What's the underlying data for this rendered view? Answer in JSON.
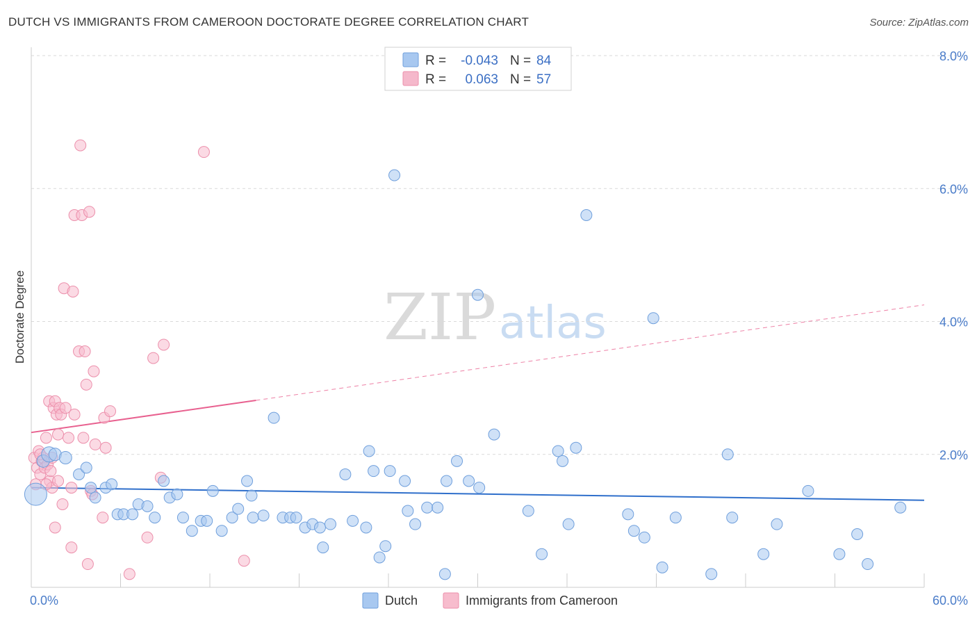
{
  "header": {
    "title": "DUTCH VS IMMIGRANTS FROM CAMEROON DOCTORATE DEGREE CORRELATION CHART",
    "source": "Source: ZipAtlas.com"
  },
  "watermark": {
    "zip": "ZIP",
    "atlas": "atlas"
  },
  "legend": {
    "rows": [
      {
        "r_label": "R =",
        "r_value": "-0.043",
        "n_label": "N =",
        "n_value": "84",
        "color": "#a8c8f0"
      },
      {
        "r_label": "R =",
        "r_value": "0.063",
        "n_label": "N =",
        "n_value": "57",
        "color": "#f5b8cb"
      }
    ]
  },
  "bottom_legend": {
    "dutch": "Dutch",
    "cameroon": "Immigrants from Cameroon"
  },
  "colors": {
    "dutch_fill": "#a8c8f0",
    "dutch_stroke": "#6f9fdc",
    "dutch_line": "#2f6fcb",
    "cam_fill": "#f7bccd",
    "cam_stroke": "#ec8fab",
    "cam_line": "#e8608f",
    "grid": "#d9d9d9"
  },
  "chart_data": {
    "type": "scatter",
    "title": "DUTCH VS IMMIGRANTS FROM CAMEROON DOCTORATE DEGREE CORRELATION CHART",
    "xlabel": "",
    "ylabel": "Doctorate Degree",
    "xlim": [
      0,
      60
    ],
    "ylim": [
      0,
      8
    ],
    "x_tick_labels": [
      "0.0%",
      "60.0%"
    ],
    "y_ticks": [
      2,
      4,
      6,
      8
    ],
    "y_tick_labels": [
      "2.0%",
      "4.0%",
      "6.0%",
      "8.0%"
    ],
    "series": [
      {
        "name": "Dutch",
        "r": -0.043,
        "n": 84,
        "trend": {
          "x0": 0,
          "y0": 1.5,
          "x1": 60,
          "y1": 1.31,
          "dashed_from": null
        },
        "points": [
          [
            0.3,
            1.4,
            16
          ],
          [
            0.8,
            1.9,
            9
          ],
          [
            1.2,
            2.0,
            11
          ],
          [
            1.6,
            2.0,
            9
          ],
          [
            2.3,
            1.95,
            9
          ],
          [
            3.2,
            1.7,
            8
          ],
          [
            3.7,
            1.8,
            8
          ],
          [
            4.0,
            1.5,
            8
          ],
          [
            4.3,
            1.35,
            8
          ],
          [
            5.0,
            1.5,
            8
          ],
          [
            5.4,
            1.55,
            8
          ],
          [
            5.8,
            1.1,
            8
          ],
          [
            6.2,
            1.1,
            8
          ],
          [
            6.8,
            1.1,
            8
          ],
          [
            7.2,
            1.25,
            8
          ],
          [
            7.8,
            1.22,
            8
          ],
          [
            8.3,
            1.05,
            8
          ],
          [
            8.9,
            1.6,
            8
          ],
          [
            9.3,
            1.35,
            8
          ],
          [
            9.8,
            1.4,
            8
          ],
          [
            10.2,
            1.05,
            8
          ],
          [
            10.8,
            0.85,
            8
          ],
          [
            11.4,
            1.0,
            8
          ],
          [
            11.8,
            1.0,
            8
          ],
          [
            12.2,
            1.45,
            8
          ],
          [
            12.8,
            0.85,
            8
          ],
          [
            13.5,
            1.05,
            8
          ],
          [
            13.9,
            1.18,
            8
          ],
          [
            14.5,
            1.6,
            8
          ],
          [
            14.8,
            1.38,
            8
          ],
          [
            14.9,
            1.05,
            8
          ],
          [
            15.6,
            1.08,
            8
          ],
          [
            16.3,
            2.55,
            8
          ],
          [
            16.9,
            1.05,
            8
          ],
          [
            17.4,
            1.05,
            8
          ],
          [
            17.8,
            1.05,
            8
          ],
          [
            18.4,
            0.9,
            8
          ],
          [
            18.9,
            0.95,
            8
          ],
          [
            19.4,
            0.9,
            8
          ],
          [
            19.6,
            0.6,
            8
          ],
          [
            20.1,
            0.95,
            8
          ],
          [
            21.1,
            1.7,
            8
          ],
          [
            21.6,
            1.0,
            8
          ],
          [
            22.5,
            0.9,
            8
          ],
          [
            22.7,
            2.05,
            8
          ],
          [
            23.0,
            1.75,
            8
          ],
          [
            23.4,
            0.45,
            8
          ],
          [
            23.8,
            0.62,
            8
          ],
          [
            24.1,
            1.75,
            8
          ],
          [
            24.4,
            6.2,
            8
          ],
          [
            25.1,
            1.6,
            8
          ],
          [
            25.3,
            1.15,
            8
          ],
          [
            25.8,
            0.95,
            8
          ],
          [
            26.6,
            1.2,
            8
          ],
          [
            27.3,
            1.2,
            8
          ],
          [
            27.8,
            0.2,
            8
          ],
          [
            27.9,
            1.6,
            8
          ],
          [
            28.6,
            1.9,
            8
          ],
          [
            29.4,
            1.6,
            8
          ],
          [
            30.0,
            4.4,
            8
          ],
          [
            30.1,
            1.5,
            8
          ],
          [
            31.1,
            2.3,
            8
          ],
          [
            33.4,
            1.15,
            8
          ],
          [
            34.3,
            0.5,
            8
          ],
          [
            35.4,
            2.05,
            8
          ],
          [
            35.7,
            1.9,
            8
          ],
          [
            36.1,
            0.95,
            8
          ],
          [
            36.6,
            2.1,
            8
          ],
          [
            37.3,
            5.6,
            8
          ],
          [
            40.1,
            1.1,
            8
          ],
          [
            40.5,
            0.85,
            8
          ],
          [
            41.2,
            0.75,
            8
          ],
          [
            41.8,
            4.05,
            8
          ],
          [
            42.4,
            0.3,
            8
          ],
          [
            43.3,
            1.05,
            8
          ],
          [
            45.7,
            0.2,
            8
          ],
          [
            46.8,
            2.0,
            8
          ],
          [
            47.1,
            1.05,
            8
          ],
          [
            49.2,
            0.5,
            8
          ],
          [
            50.1,
            0.95,
            8
          ],
          [
            52.2,
            1.45,
            8
          ],
          [
            54.3,
            0.5,
            8
          ],
          [
            55.5,
            0.8,
            8
          ],
          [
            56.2,
            0.35,
            8
          ],
          [
            58.4,
            1.2,
            8
          ]
        ]
      },
      {
        "name": "Immigrants from Cameroon",
        "r": 0.063,
        "n": 57,
        "trend": {
          "x0": 0,
          "y0": 2.33,
          "x1": 60,
          "y1": 4.25,
          "dashed_from": 15.1
        },
        "points": [
          [
            0.2,
            1.95,
            8
          ],
          [
            0.4,
            1.8,
            8
          ],
          [
            0.5,
            2.05,
            8
          ],
          [
            0.6,
            1.7,
            8
          ],
          [
            0.7,
            1.9,
            8
          ],
          [
            0.8,
            1.95,
            8
          ],
          [
            0.9,
            1.8,
            8
          ],
          [
            1.0,
            2.25,
            8
          ],
          [
            1.1,
            1.85,
            8
          ],
          [
            1.2,
            2.8,
            8
          ],
          [
            1.25,
            1.6,
            8
          ],
          [
            1.3,
            1.75,
            8
          ],
          [
            1.4,
            1.5,
            8
          ],
          [
            1.5,
            2.7,
            8
          ],
          [
            1.6,
            2.8,
            8
          ],
          [
            1.6,
            0.9,
            8
          ],
          [
            1.7,
            2.6,
            8
          ],
          [
            1.8,
            2.3,
            8
          ],
          [
            1.8,
            1.6,
            8
          ],
          [
            1.9,
            2.7,
            8
          ],
          [
            2.0,
            2.6,
            8
          ],
          [
            2.1,
            1.25,
            8
          ],
          [
            2.2,
            4.5,
            8
          ],
          [
            2.3,
            2.7,
            8
          ],
          [
            2.5,
            2.25,
            8
          ],
          [
            2.7,
            0.6,
            8
          ],
          [
            2.7,
            1.5,
            8
          ],
          [
            2.8,
            4.45,
            8
          ],
          [
            2.9,
            2.6,
            8
          ],
          [
            2.9,
            5.6,
            8
          ],
          [
            3.2,
            3.55,
            8
          ],
          [
            3.3,
            6.65,
            8
          ],
          [
            3.4,
            5.6,
            8
          ],
          [
            3.5,
            2.25,
            8
          ],
          [
            3.6,
            3.55,
            8
          ],
          [
            3.7,
            3.05,
            8
          ],
          [
            3.8,
            0.35,
            8
          ],
          [
            3.9,
            5.65,
            8
          ],
          [
            4.0,
            1.45,
            8
          ],
          [
            4.1,
            1.4,
            8
          ],
          [
            4.2,
            3.25,
            8
          ],
          [
            4.3,
            2.15,
            8
          ],
          [
            4.8,
            1.05,
            8
          ],
          [
            4.9,
            2.55,
            8
          ],
          [
            5.0,
            2.1,
            8
          ],
          [
            5.3,
            2.65,
            8
          ],
          [
            6.6,
            0.2,
            8
          ],
          [
            7.8,
            0.75,
            8
          ],
          [
            8.2,
            3.45,
            8
          ],
          [
            8.7,
            1.65,
            8
          ],
          [
            8.9,
            3.65,
            8
          ],
          [
            11.6,
            6.55,
            8
          ],
          [
            14.3,
            0.4,
            8
          ],
          [
            0.6,
            2.0,
            8
          ],
          [
            1.0,
            1.55,
            8
          ],
          [
            0.3,
            1.55,
            8
          ],
          [
            1.4,
            1.95,
            8
          ]
        ]
      }
    ]
  }
}
